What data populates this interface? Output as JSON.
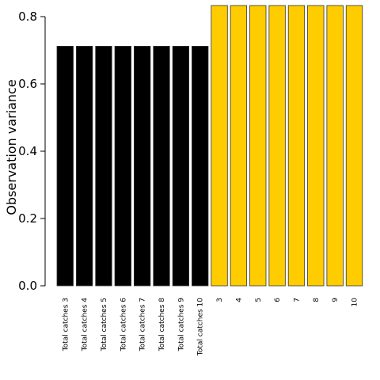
{
  "chart_data": {
    "type": "bar",
    "title": "",
    "xlabel": "",
    "ylabel": "Observation variance",
    "ylim": [
      0,
      0.8
    ],
    "yticks": [
      0.0,
      0.2,
      0.4,
      0.6,
      0.8
    ],
    "ytick_labels": [
      "0.0",
      "0.2",
      "0.4",
      "0.6",
      "0.8"
    ],
    "grid": false,
    "categories": [
      "Total catches 3",
      "Total catches 4",
      "Total catches 5",
      "Total catches 6",
      "Total catches 7",
      "Total catches 8",
      "Total catches 9",
      "Total catches 10",
      "3",
      "4",
      "5",
      "6",
      "7",
      "8",
      "9",
      "10"
    ],
    "values": [
      0.712,
      0.712,
      0.712,
      0.712,
      0.712,
      0.712,
      0.712,
      0.712,
      0.833,
      0.833,
      0.833,
      0.833,
      0.833,
      0.833,
      0.833,
      0.833
    ],
    "colors": [
      "#000000",
      "#000000",
      "#000000",
      "#000000",
      "#000000",
      "#000000",
      "#000000",
      "#000000",
      "#FFCC00",
      "#FFCC00",
      "#FFCC00",
      "#FFCC00",
      "#FFCC00",
      "#FFCC00",
      "#FFCC00",
      "#FFCC00"
    ],
    "bar_edge_color": "#333333"
  }
}
